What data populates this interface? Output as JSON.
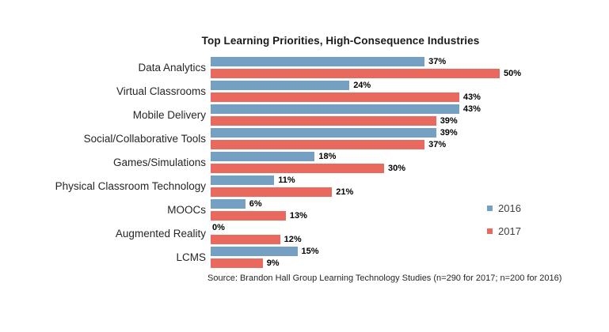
{
  "chart_data": {
    "type": "bar",
    "orientation": "horizontal",
    "title": "Top Learning Priorities, High-Consequence Industries",
    "categories": [
      "Data Analytics",
      "Virtual Classrooms",
      "Mobile Delivery",
      "Social/Collaborative Tools",
      "Games/Simulations",
      "Physical Classroom Technology",
      "MOOCs",
      "Augmented Reality",
      "LCMS"
    ],
    "series": [
      {
        "name": "2016",
        "color": "#76A0C2",
        "values": [
          37,
          24,
          43,
          39,
          18,
          11,
          6,
          0,
          15
        ]
      },
      {
        "name": "2017",
        "color": "#E9695E",
        "values": [
          50,
          43,
          39,
          37,
          30,
          21,
          13,
          12,
          9
        ]
      }
    ],
    "unit": "%",
    "value_axis_max": 53,
    "grid": false,
    "legend_position": "right",
    "data_labels": true,
    "source": "Source: Brandon Hall Group Learning Technology Studies (n=290 for 2017; n=200 for 2016)"
  },
  "colors": {
    "background": "#ffffff",
    "series_2016": "#76A0C2",
    "series_2017": "#E9695E",
    "title_text": "#1a1a1a",
    "label_text": "#262626",
    "legend_text": "#3f3f3f"
  }
}
